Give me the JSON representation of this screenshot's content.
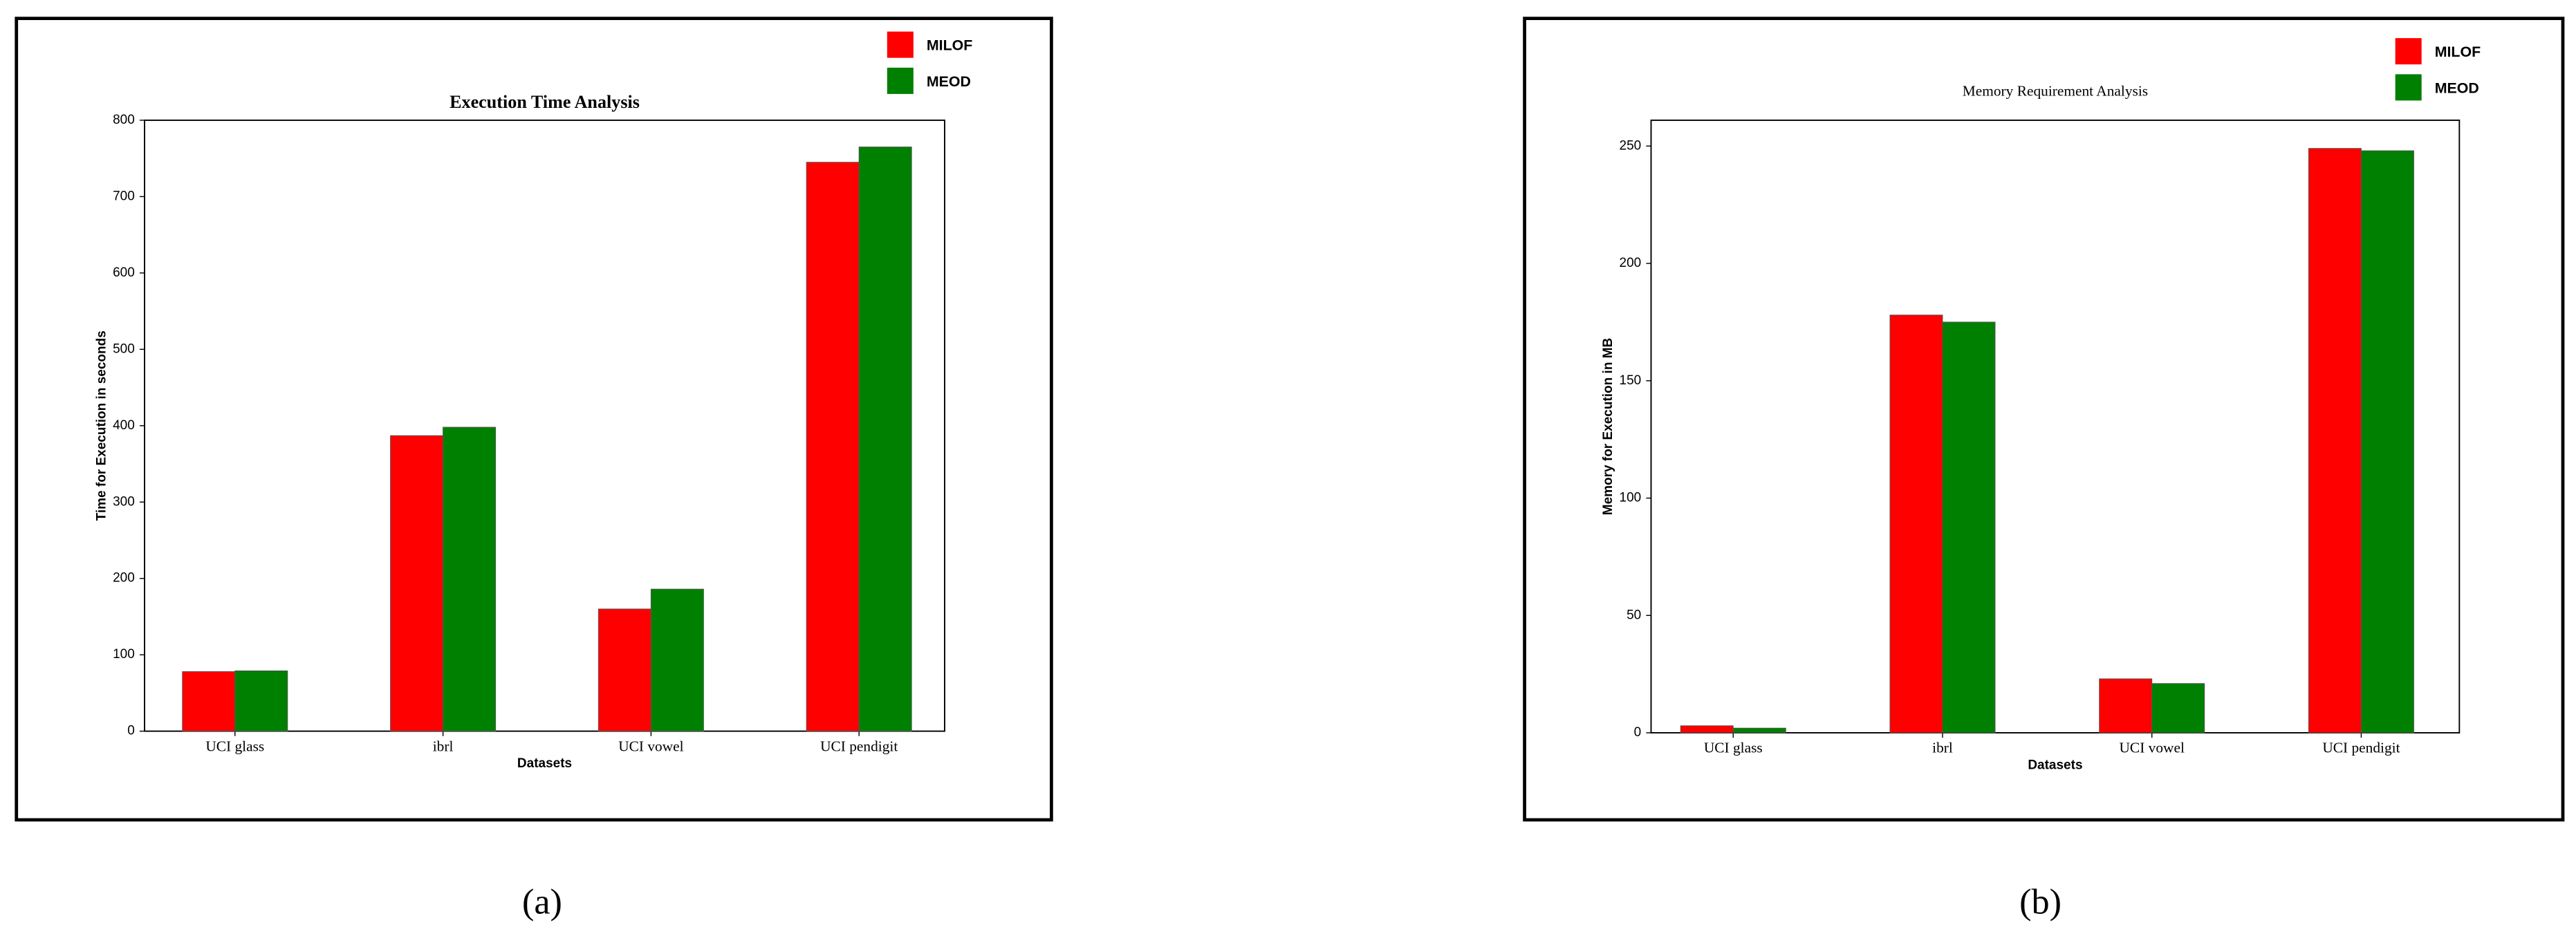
{
  "chart_data": [
    {
      "type": "bar",
      "title": "Execution Time Analysis",
      "x_label": "Datasets",
      "y_label": "Time for Execution in seconds",
      "caption": "(a)",
      "categories": [
        "UCI glass",
        "ibrl",
        "UCI vowel",
        "UCI pendigit"
      ],
      "series": [
        {
          "name": "MILOF",
          "color": "#ff0000",
          "values": [
            78,
            387,
            160,
            745
          ]
        },
        {
          "name": "MEOD",
          "color": "#008000",
          "values": [
            79,
            398,
            186,
            765
          ]
        }
      ],
      "ylim": [
        0,
        800
      ],
      "yticks": [
        0,
        100,
        200,
        300,
        400,
        500,
        600,
        700,
        800
      ]
    },
    {
      "type": "bar",
      "title": "Memory Requirement Analysis",
      "x_label": "Datasets",
      "y_label": "Memory for Execution in MB",
      "caption": "(b)",
      "categories": [
        "UCI glass",
        "ibrl",
        "UCI vowel",
        "UCI pendigit"
      ],
      "series": [
        {
          "name": "MILOF",
          "color": "#ff0000",
          "values": [
            3,
            178,
            23,
            249
          ]
        },
        {
          "name": "MEOD",
          "color": "#008000",
          "values": [
            2,
            175,
            21,
            248
          ]
        }
      ],
      "ylim": [
        0,
        261
      ],
      "yticks": [
        0,
        50,
        100,
        150,
        200,
        250
      ]
    }
  ]
}
